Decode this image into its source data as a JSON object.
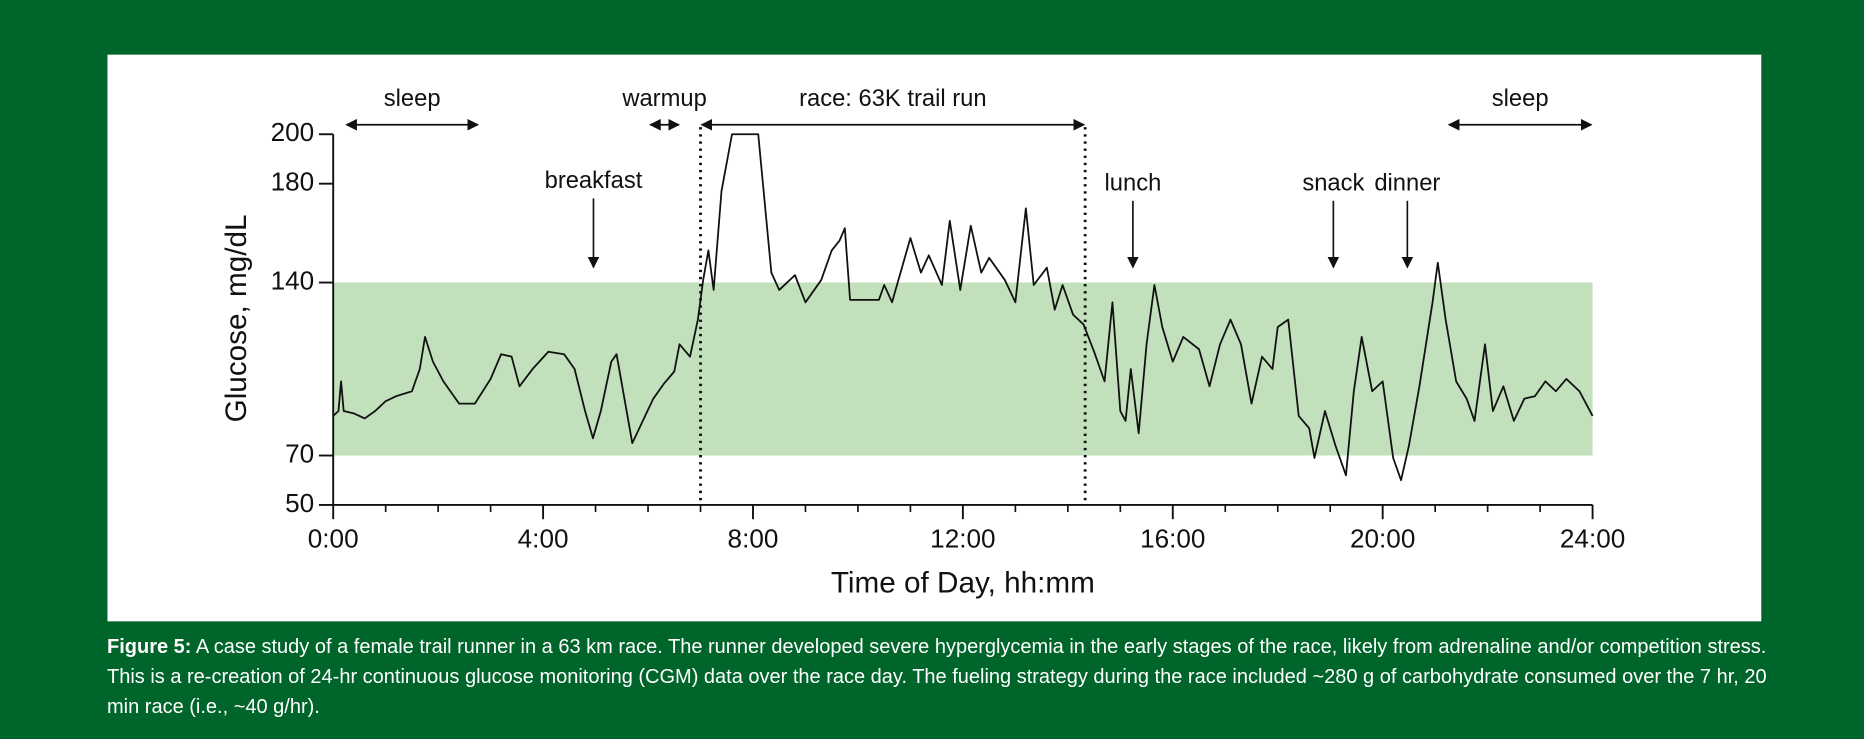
{
  "chart_data": {
    "type": "line",
    "xlabel": "Time of Day, hh:mm",
    "ylabel": "Glucose, mg/dL",
    "xlim": [
      0,
      24
    ],
    "ylim": [
      50,
      200
    ],
    "xticks": [
      {
        "value": 0,
        "label": "0:00"
      },
      {
        "value": 4,
        "label": "4:00"
      },
      {
        "value": 8,
        "label": "8:00"
      },
      {
        "value": 12,
        "label": "12:00"
      },
      {
        "value": 16,
        "label": "16:00"
      },
      {
        "value": 20,
        "label": "20:00"
      },
      {
        "value": 24,
        "label": "24:00"
      }
    ],
    "xminorticks": [
      1,
      2,
      3,
      5,
      6,
      7,
      9,
      10,
      11,
      13,
      14,
      15,
      17,
      18,
      19,
      21,
      22,
      23
    ],
    "yticks": [
      50,
      70,
      140,
      180,
      200
    ],
    "target_range": [
      70,
      140
    ],
    "target_color": "#c1e0bb",
    "color": "#111111",
    "x": [
      0,
      0.1,
      0.15,
      0.2,
      0.4,
      0.6,
      0.8,
      1.0,
      1.2,
      1.5,
      1.65,
      1.75,
      1.9,
      2.1,
      2.4,
      2.7,
      3.0,
      3.2,
      3.4,
      3.55,
      3.8,
      4.1,
      4.4,
      4.6,
      4.8,
      4.95,
      5.1,
      5.3,
      5.4,
      5.55,
      5.7,
      5.9,
      6.1,
      6.3,
      6.5,
      6.6,
      6.8,
      6.95,
      7.05,
      7.15,
      7.25,
      7.4,
      7.6,
      8.1,
      8.35,
      8.5,
      8.8,
      9.0,
      9.3,
      9.5,
      9.65,
      9.75,
      9.85,
      10.4,
      10.5,
      10.65,
      11.0,
      11.2,
      11.35,
      11.6,
      11.75,
      11.95,
      12.15,
      12.35,
      12.5,
      12.8,
      13.0,
      13.2,
      13.35,
      13.6,
      13.75,
      13.9,
      14.1,
      14.3,
      14.5,
      14.7,
      14.85,
      15.0,
      15.1,
      15.2,
      15.35,
      15.5,
      15.65,
      15.8,
      16.0,
      16.2,
      16.5,
      16.7,
      16.9,
      17.1,
      17.3,
      17.5,
      17.7,
      17.9,
      18.0,
      18.2,
      18.4,
      18.6,
      18.7,
      18.9,
      19.1,
      19.3,
      19.45,
      19.6,
      19.8,
      20.0,
      20.2,
      20.35,
      20.5,
      20.7,
      20.95,
      21.05,
      21.2,
      21.4,
      21.6,
      21.75,
      21.95,
      22.1,
      22.3,
      22.5,
      22.7,
      22.9,
      23.1,
      23.3,
      23.5,
      23.75,
      24.0
    ],
    "values": [
      86,
      88,
      100,
      88,
      87,
      85,
      88,
      92,
      94,
      96,
      105,
      118,
      108,
      100,
      91,
      91,
      101,
      111,
      110,
      98,
      105,
      112,
      111,
      105,
      88,
      77,
      88,
      108,
      111,
      93,
      75,
      84,
      93,
      99,
      104,
      115,
      110,
      125,
      141,
      153,
      137,
      177,
      200,
      200,
      144,
      137,
      143,
      132,
      141,
      153,
      157,
      162,
      133,
      133,
      139,
      132,
      158,
      144,
      151,
      139,
      165,
      137,
      163,
      144,
      150,
      141,
      132,
      170,
      139,
      146,
      129,
      139,
      127,
      123,
      112,
      100,
      132,
      88,
      84,
      105,
      79,
      115,
      139,
      122,
      108,
      118,
      113,
      98,
      115,
      125,
      115,
      91,
      110,
      105,
      122,
      125,
      86,
      81,
      69,
      88,
      74,
      62,
      96,
      118,
      96,
      100,
      69,
      60,
      74,
      98,
      132,
      148,
      125,
      100,
      93,
      84,
      115,
      88,
      98,
      84,
      93,
      94,
      100,
      96,
      101,
      96,
      86
    ],
    "periods": [
      {
        "label": "sleep",
        "start": 0.23,
        "end": 2.78
      },
      {
        "label": "warmup",
        "start": 6.02,
        "end": 6.61
      },
      {
        "label": "race: 63K trail run",
        "start": 7.0,
        "end": 14.33,
        "dotted": true
      },
      {
        "label": "sleep",
        "start": 21.24,
        "end": 24
      }
    ],
    "events": [
      {
        "label": "breakfast",
        "x": 4.96
      },
      {
        "label": "lunch",
        "x": 15.24
      },
      {
        "label": "snack",
        "x": 19.06
      },
      {
        "label": "dinner",
        "x": 20.47
      }
    ]
  },
  "caption": {
    "label": "Figure 5:",
    "text": "A case study of a female trail runner in a 63 km race. The runner developed severe hyperglycemia in the early stages of the race, likely from adrenaline and/or competition stress. This is a re-creation of 24-hr continuous glucose monitoring (CGM) data over the race day. The fueling strategy during the race included ~280 g of carbohydrate consumed over the 7 hr, 20 min race (i.e., ~40 g/hr)."
  }
}
